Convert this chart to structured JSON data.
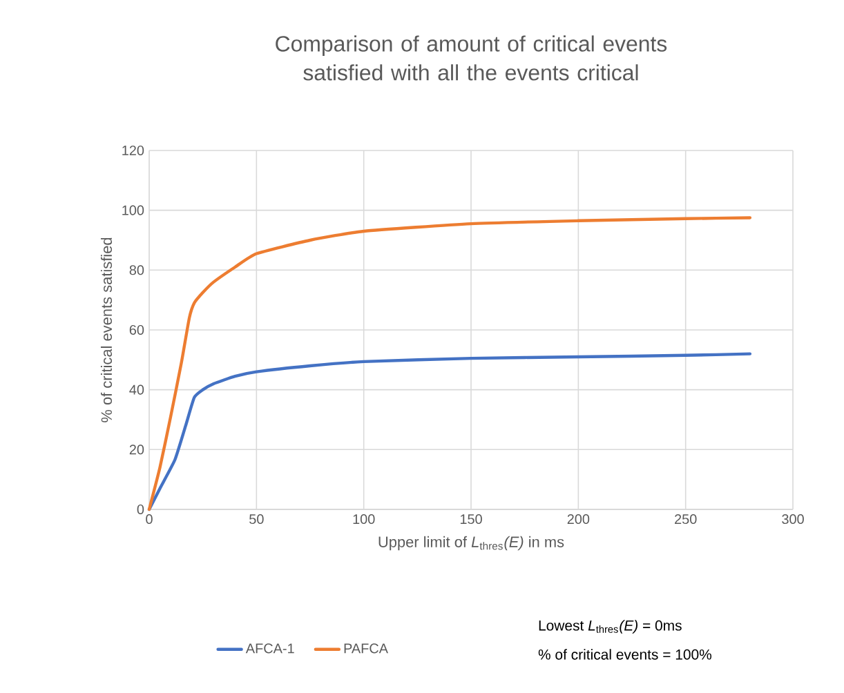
{
  "chart_data": {
    "type": "line",
    "title": "Comparison of amount of critical events satisfied with all the events critical",
    "xlabel": "Upper limit of *L*$_{thres}$*(E)* in ms",
    "ylabel": "% of critical events satisfied",
    "xlim": [
      0,
      300
    ],
    "ylim": [
      0,
      120
    ],
    "xticks": [
      0,
      50,
      100,
      150,
      200,
      250,
      300
    ],
    "yticks": [
      0,
      20,
      40,
      60,
      80,
      100,
      120
    ],
    "grid": true,
    "legend": "bottom",
    "marker": "none",
    "line_style": "solid",
    "annotations": [
      "Lowest *L*$_{thres}$*(E)* = 0ms",
      "% of critical events = 100%"
    ],
    "series": [
      {
        "name": "AFCA-1",
        "color": "#4472c4",
        "x": [
          0,
          5,
          12,
          17,
          21,
          25,
          30,
          40,
          50,
          75,
          100,
          150,
          200,
          250,
          280
        ],
        "values": [
          0,
          7,
          16.6,
          28,
          37.4,
          40,
          42,
          44.5,
          46,
          48,
          49.4,
          50.5,
          51,
          51.5,
          52
        ]
      },
      {
        "name": "PAFCA",
        "color": "#ed7d31",
        "x": [
          0,
          5,
          10,
          15,
          18.7,
          21,
          25,
          30,
          40,
          50,
          75,
          100,
          150,
          200,
          250,
          280
        ],
        "values": [
          0,
          14,
          31,
          49,
          64,
          69,
          72.5,
          76,
          81,
          85.5,
          90,
          93,
          95.5,
          96.5,
          97.2,
          97.5
        ]
      }
    ]
  }
}
